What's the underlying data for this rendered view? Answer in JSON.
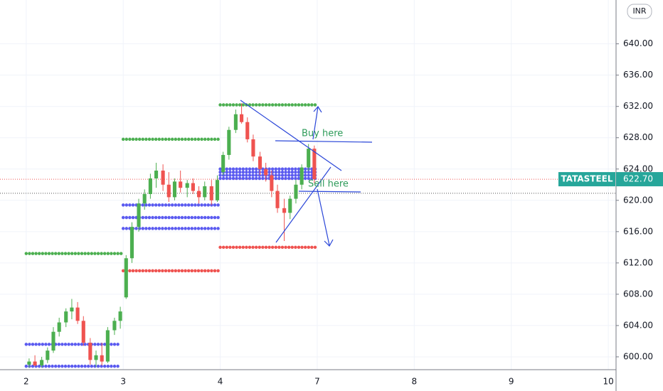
{
  "chart_data": {
    "type": "candlestick",
    "symbol": "TATASTEEL",
    "currency": "INR",
    "last_price": {
      "value": 622.7,
      "label": "622.70"
    },
    "reference_line": 620.9,
    "up_color": "#4caf50",
    "down_color": "#ef5350",
    "xlim": [
      -0.27,
      6.08
    ],
    "xticks": [
      {
        "value": 0,
        "label": "2"
      },
      {
        "value": 1,
        "label": "3"
      },
      {
        "value": 2,
        "label": "4"
      },
      {
        "value": 3,
        "label": "7"
      },
      {
        "value": 4,
        "label": "8"
      },
      {
        "value": 5,
        "label": "9"
      },
      {
        "value": 6,
        "label": "10"
      }
    ],
    "ylim": [
      598.36,
      645.6
    ],
    "yticks": [
      {
        "value": 600,
        "label": "600.00"
      },
      {
        "value": 604,
        "label": "604.00"
      },
      {
        "value": 608,
        "label": "608.00"
      },
      {
        "value": 612,
        "label": "612.00"
      },
      {
        "value": 616,
        "label": "616.00"
      },
      {
        "value": 620,
        "label": "620.00"
      },
      {
        "value": 624,
        "label": "624.00"
      },
      {
        "value": 628,
        "label": "628.00"
      },
      {
        "value": 632,
        "label": "632.00"
      },
      {
        "value": 636,
        "label": "636.00"
      },
      {
        "value": 640,
        "label": "640.00"
      }
    ],
    "grid": true,
    "candles": {
      "x": [
        0.03,
        0.09,
        0.16,
        0.22,
        0.28,
        0.34,
        0.41,
        0.47,
        0.53,
        0.59,
        0.66,
        0.72,
        0.78,
        0.84,
        0.91,
        0.97,
        1.03,
        1.09,
        1.16,
        1.22,
        1.28,
        1.34,
        1.41,
        1.47,
        1.53,
        1.59,
        1.66,
        1.72,
        1.78,
        1.84,
        1.91,
        1.97,
        2.03,
        2.09,
        2.16,
        2.22,
        2.28,
        2.34,
        2.41,
        2.47,
        2.53,
        2.59,
        2.66,
        2.72,
        2.78,
        2.84,
        2.91,
        2.97
      ],
      "open": [
        599.0,
        599.4,
        598.9,
        599.6,
        600.8,
        603.2,
        604.4,
        605.8,
        606.3,
        604.6,
        601.8,
        599.6,
        600.2,
        599.4,
        603.4,
        604.6,
        607.6,
        612.6,
        616.6,
        619.6,
        620.8,
        622.8,
        623.8,
        622.0,
        620.4,
        622.4,
        621.6,
        622.2,
        621.2,
        620.4,
        621.8,
        620.0,
        623.6,
        625.8,
        629.0,
        631.0,
        630.0,
        627.8,
        625.6,
        624.0,
        623.2,
        621.2,
        619.0,
        618.4,
        620.2,
        622.0,
        624.2,
        626.6
      ],
      "high": [
        599.8,
        600.2,
        600.0,
        601.2,
        603.8,
        605.0,
        606.2,
        607.4,
        607.0,
        605.2,
        602.4,
        600.8,
        601.8,
        603.8,
        605.0,
        606.4,
        613.0,
        617.2,
        620.2,
        621.4,
        623.4,
        624.8,
        624.6,
        623.6,
        622.8,
        623.8,
        622.6,
        622.8,
        621.8,
        622.4,
        622.6,
        623.2,
        626.2,
        629.4,
        631.6,
        632.4,
        630.6,
        628.4,
        626.2,
        624.8,
        623.8,
        622.0,
        620.2,
        620.6,
        622.6,
        624.6,
        627.2,
        627.0
      ],
      "low": [
        598.6,
        598.8,
        598.6,
        599.2,
        600.5,
        602.6,
        603.8,
        604.8,
        604.2,
        601.4,
        599.0,
        598.7,
        598.9,
        599.2,
        602.8,
        603.6,
        607.4,
        612.0,
        616.0,
        618.8,
        620.2,
        621.6,
        621.2,
        619.8,
        620.0,
        621.0,
        620.4,
        620.8,
        619.6,
        620.0,
        619.4,
        619.8,
        623.2,
        625.2,
        628.6,
        629.8,
        627.4,
        625.0,
        623.2,
        622.4,
        620.4,
        618.4,
        614.8,
        617.6,
        619.6,
        621.4,
        623.8,
        622.2
      ],
      "close": [
        599.4,
        598.9,
        599.6,
        600.8,
        603.2,
        604.4,
        605.8,
        606.3,
        604.6,
        601.8,
        599.6,
        600.2,
        599.4,
        603.4,
        604.6,
        605.8,
        612.6,
        616.6,
        619.6,
        620.8,
        622.8,
        623.8,
        622.0,
        620.4,
        622.4,
        621.6,
        622.2,
        621.2,
        620.4,
        621.8,
        620.0,
        622.6,
        625.8,
        629.0,
        631.0,
        630.0,
        627.8,
        625.6,
        624.0,
        623.2,
        621.2,
        619.0,
        618.4,
        620.2,
        622.0,
        624.2,
        626.6,
        622.7
      ]
    },
    "levels": [
      {
        "value": 613.2,
        "x0": 0,
        "x1": 1,
        "color": "#4caf50"
      },
      {
        "value": 601.6,
        "x0": 0,
        "x1": 0.97,
        "color": "#5b5bf0"
      },
      {
        "value": 598.8,
        "x0": 0,
        "x1": 0.97,
        "color": "#5b5bf0"
      },
      {
        "value": 627.8,
        "x0": 1,
        "x1": 1.98,
        "color": "#4caf50"
      },
      {
        "value": 619.4,
        "x0": 1,
        "x1": 1.98,
        "color": "#5b5bf0"
      },
      {
        "value": 617.8,
        "x0": 1,
        "x1": 1.98,
        "color": "#5b5bf0"
      },
      {
        "value": 616.4,
        "x0": 1,
        "x1": 1.98,
        "color": "#5b5bf0"
      },
      {
        "value": 611.0,
        "x0": 1,
        "x1": 1.98,
        "color": "#ef5350"
      },
      {
        "value": 632.2,
        "x0": 2,
        "x1": 2.98,
        "color": "#4caf50"
      },
      {
        "value": 624.0,
        "x0": 2,
        "x1": 2.98,
        "color": "#5b5bf0"
      },
      {
        "value": 623.6,
        "x0": 2,
        "x1": 2.98,
        "color": "#5b5bf0"
      },
      {
        "value": 623.2,
        "x0": 2,
        "x1": 2.98,
        "color": "#5b5bf0"
      },
      {
        "value": 622.8,
        "x0": 2,
        "x1": 2.98,
        "color": "#5b5bf0"
      },
      {
        "value": 614.0,
        "x0": 2,
        "x1": 2.98,
        "color": "#ef5350"
      }
    ],
    "annotations": [
      "Buy here",
      "Sell here"
    ]
  }
}
